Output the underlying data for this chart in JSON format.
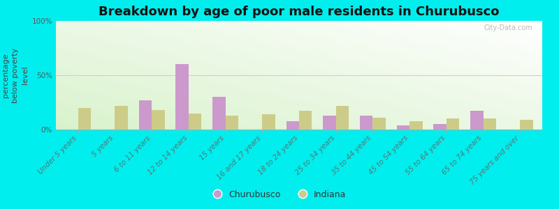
{
  "title": "Breakdown by age of poor male residents in Churubusco",
  "ylabel": "percentage\nbelow poverty\nlevel",
  "categories": [
    "Under 5 years",
    "5 years",
    "6 to 11 years",
    "12 to 14 years",
    "15 years",
    "16 and 17 years",
    "18 to 24 years",
    "25 to 34 years",
    "35 to 44 years",
    "45 to 54 years",
    "55 to 64 years",
    "65 to 74 years",
    "75 years and over"
  ],
  "churubusco": [
    0,
    0,
    27,
    60,
    30,
    0,
    8,
    13,
    13,
    4,
    5,
    17,
    0
  ],
  "indiana": [
    20,
    22,
    18,
    15,
    13,
    14,
    17,
    22,
    11,
    8,
    10,
    10,
    9
  ],
  "churubusco_color": "#cc99cc",
  "indiana_color": "#cccc88",
  "background_color": "#00eeee",
  "ylim": [
    0,
    100
  ],
  "yticks": [
    0,
    50,
    100
  ],
  "ytick_labels": [
    "0%",
    "50%",
    "100%"
  ],
  "bar_width": 0.35,
  "title_fontsize": 13,
  "axis_label_fontsize": 8,
  "tick_fontsize": 7.5,
  "legend_fontsize": 9,
  "watermark": "City-Data.com"
}
